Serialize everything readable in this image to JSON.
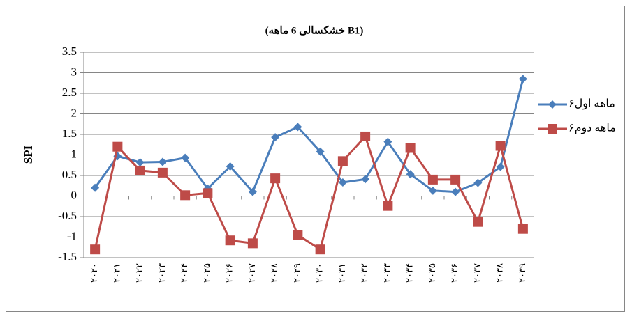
{
  "chart_data": {
    "type": "line",
    "title": "(خشکسالی 6 ماهه B1)",
    "y_label": "SPI",
    "categories": [
      "۲۰۲۰",
      "۲۰۲۱",
      "۲۰۲۲",
      "۲۰۲۳",
      "۲۰۲۴",
      "۲۰۲۵",
      "۲۰۲۶",
      "۲۰۲۷",
      "۲۰۲۸",
      "۲۰۲۹",
      "۲۰۳۰",
      "۲۰۳۱",
      "۲۰۳۲",
      "۲۰۳۳",
      "۲۰۳۴",
      "۲۰۳۵",
      "۲۰۳۶",
      "۲۰۳۷",
      "۲۰۳۸",
      "۲۰۳۹"
    ],
    "series": [
      {
        "name": "۶ماهه اول",
        "color": "#4a7ebb",
        "marker": "diamond",
        "values": [
          0.2,
          0.97,
          0.82,
          0.83,
          0.93,
          0.18,
          0.72,
          0.1,
          1.43,
          1.68,
          1.08,
          0.33,
          0.41,
          1.32,
          0.53,
          0.13,
          0.1,
          0.32,
          0.71,
          2.85
        ]
      },
      {
        "name": "۶ماهه دوم",
        "color": "#be4b48",
        "marker": "square",
        "values": [
          -1.3,
          1.2,
          0.62,
          0.57,
          0.02,
          0.07,
          -1.08,
          -1.15,
          0.43,
          -0.95,
          -1.3,
          0.85,
          1.45,
          -0.24,
          1.17,
          0.4,
          0.4,
          -0.63,
          1.22,
          -0.8
        ]
      }
    ],
    "ylim": [
      -1.5,
      3.5
    ],
    "yticks": [
      -1.5,
      -1,
      -0.5,
      0,
      0.5,
      1,
      1.5,
      2,
      2.5,
      3,
      3.5
    ],
    "grid": true,
    "legend": "right"
  }
}
